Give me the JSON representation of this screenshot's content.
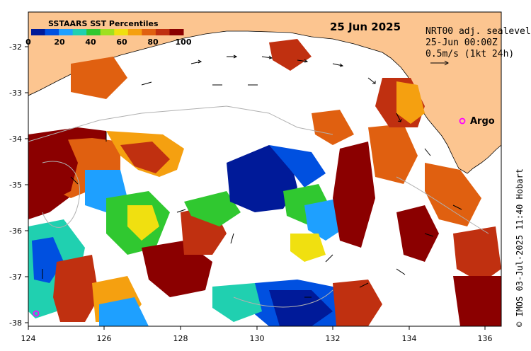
{
  "map": {
    "date_title": "25 Jun 2025",
    "legend": {
      "title": "SSTAARS SST Percentiles",
      "ticks": [
        "0",
        "20",
        "40",
        "60",
        "80",
        "100"
      ],
      "colors": [
        "#001a99",
        "#0050e0",
        "#1ea0ff",
        "#20d0b0",
        "#30c830",
        "#a0e020",
        "#f0e010",
        "#f5a010",
        "#e06010",
        "#c03010",
        "#8b0000"
      ]
    },
    "info": {
      "line1": "NRT00 adj. sealevel",
      "line2": "25-Jun 00:00Z",
      "line3": "0.5m/s (1kt 24h)"
    },
    "argo_label": "Argo",
    "credit": "© IMOS 03-Jul-2025 11:40 Hobart",
    "x_axis": {
      "ticks": [
        "124",
        "126",
        "128",
        "130",
        "132",
        "134",
        "136"
      ]
    },
    "y_axis": {
      "ticks": [
        "-32",
        "-33",
        "-34",
        "-35",
        "-36",
        "-37",
        "-38"
      ]
    },
    "colors": {
      "land": "#fcc590",
      "argo_marker": "#ff00ff",
      "frame": "#000000",
      "contour": "#b0b0b0"
    }
  }
}
